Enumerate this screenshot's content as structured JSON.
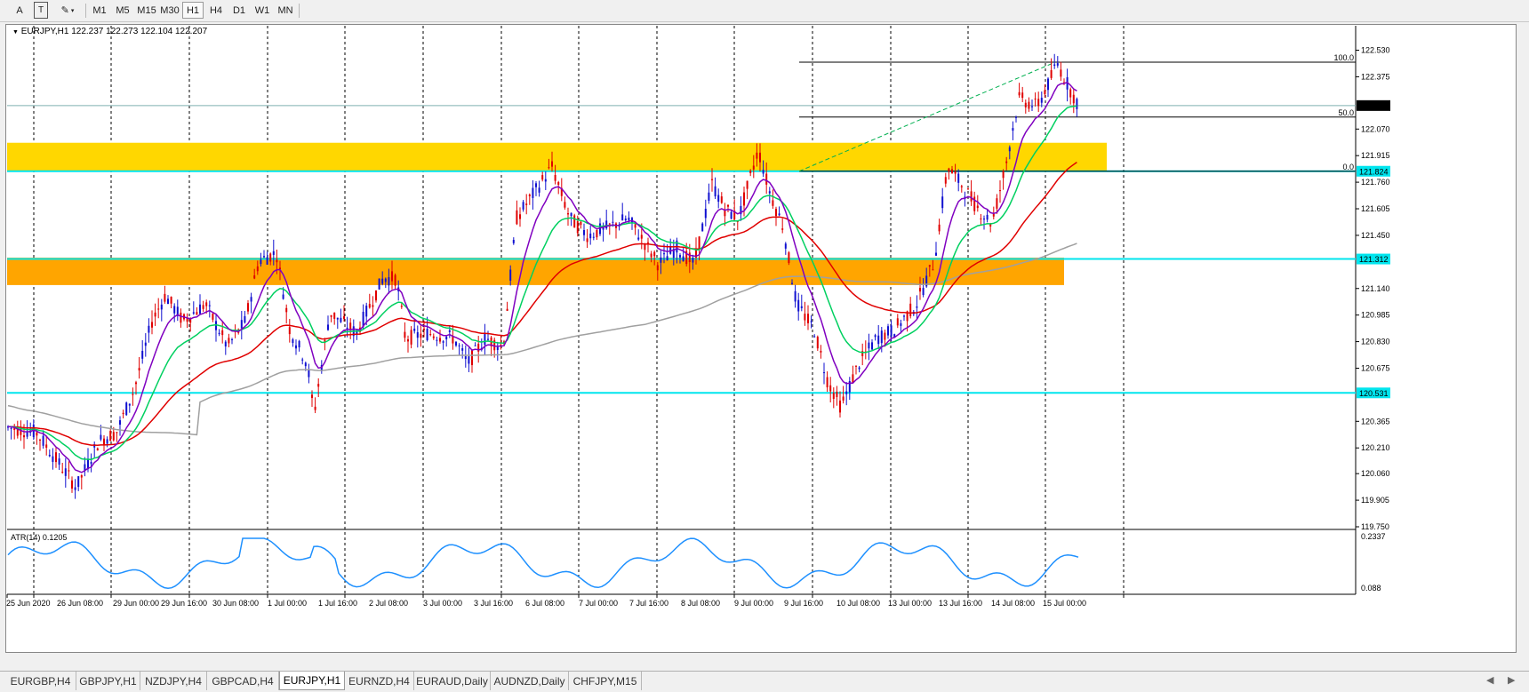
{
  "toolbar": {
    "text_tool": "A",
    "text_label_tool": "T",
    "shapes_tool": "✎",
    "timeframes": [
      "M1",
      "M5",
      "M15",
      "M30",
      "H1",
      "H4",
      "D1",
      "W1",
      "MN"
    ],
    "active_timeframe": "H1"
  },
  "chart": {
    "header": "EURJPY,H1  122.237 122.273 122.104 122.207",
    "price_ticks": [
      "122.530",
      "122.375",
      "122.070",
      "121.915",
      "121.760",
      "121.605",
      "121.450",
      "121.140",
      "120.985",
      "120.830",
      "120.675",
      "120.365",
      "120.210",
      "120.060",
      "119.905",
      "119.750"
    ],
    "price_tags": [
      {
        "text": "122.207",
        "bg": "#000000",
        "fg": "#ffffff"
      },
      {
        "text": "121.824",
        "bg": "#00e5ee",
        "fg": "#ffffff"
      },
      {
        "text": "121.312",
        "bg": "#00e5ee",
        "fg": "#ffffff"
      },
      {
        "text": "120.531",
        "bg": "#00e5ee",
        "fg": "#ffffff"
      }
    ],
    "fib_labels": [
      "100.0",
      "50.0",
      "0.0"
    ],
    "time_labels": [
      "25 Jun 2020",
      "26 Jun 08:00",
      "29 Jun 00:00",
      "29 Jun 16:00",
      "30 Jun 08:00",
      "1 Jul 00:00",
      "1 Jul 16:00",
      "2 Jul 08:00",
      "3 Jul 00:00",
      "3 Jul 16:00",
      "6 Jul 08:00",
      "7 Jul 00:00",
      "7 Jul 16:00",
      "8 Jul 08:00",
      "9 Jul 00:00",
      "9 Jul 16:00",
      "10 Jul 08:00",
      "13 Jul 00:00",
      "13 Jul 16:00",
      "14 Jul 08:00",
      "15 Jul 00:00"
    ],
    "indicator": {
      "label": "ATR(14) 0.1205",
      "top": "0.2337",
      "bottom": "0.088"
    },
    "colors": {
      "bull": "#1010d0",
      "bear": "#e00000",
      "ema_fast": "#8000c0",
      "ema_mid": "#00d060",
      "ema_slow": "#e00000",
      "sma_long": "#a0a0a0",
      "atr": "#1e90ff",
      "zone_yellow": "#ffd700",
      "zone_orange": "#ffa500",
      "support_line": "#00e5ee"
    }
  },
  "chart_data": {
    "type": "candlestick",
    "symbol": "EURJPY",
    "timeframe": "H1",
    "ylim": [
      119.75,
      122.6
    ],
    "ohlc_last": {
      "open": 122.237,
      "high": 122.273,
      "low": 122.104,
      "close": 122.207
    },
    "horizontal_levels": [
      121.824,
      121.312,
      120.531
    ],
    "zones": [
      {
        "from": 121.82,
        "to": 121.99,
        "color": "yellow"
      },
      {
        "from": 121.16,
        "to": 121.32,
        "color": "orange"
      }
    ],
    "fibonacci": [
      {
        "level": "100.0",
        "price": 122.46
      },
      {
        "level": "50.0",
        "price": 122.14
      },
      {
        "level": "0.0",
        "price": 121.824
      }
    ],
    "atr": {
      "period": 14,
      "value": 0.1205,
      "ylim": [
        0.088,
        0.2337
      ]
    }
  },
  "tabs": [
    "EURGBP,H4",
    "GBPJPY,H1",
    "NZDJPY,H4",
    "GBPCAD,H4",
    "EURJPY,H1",
    "EURNZD,H4",
    "EURAUD,Daily",
    "AUDNZD,Daily",
    "CHFJPY,M15"
  ],
  "active_tab": "EURJPY,H1"
}
